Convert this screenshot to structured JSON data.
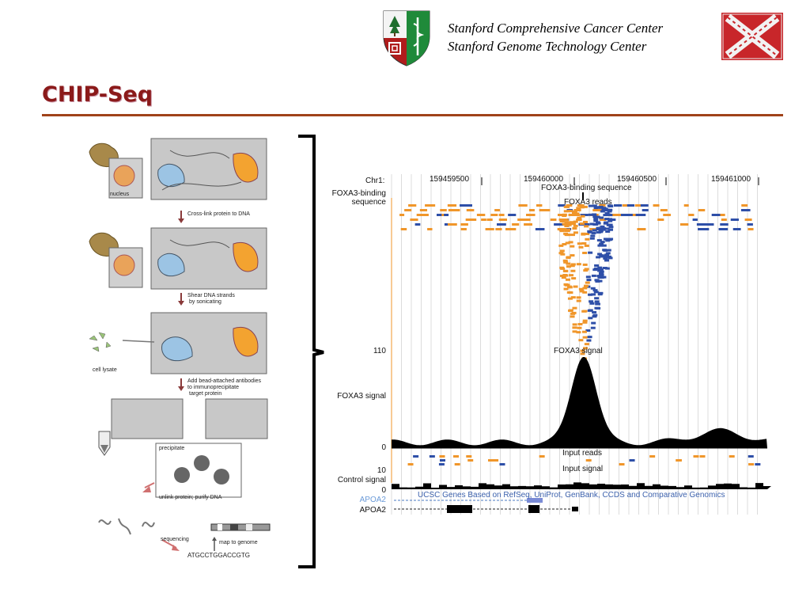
{
  "header": {
    "line1": "Stanford Comprehensive Cancer Center",
    "line2": "Stanford Genome Technology Center"
  },
  "title": "CHIP-Seq",
  "colors": {
    "title": "#8b1a1a",
    "rule": "#a0421a",
    "read_orange": "#f0962a",
    "read_blue": "#2e4fa8",
    "signal": "#000000",
    "gene_blue": "#4a78c0"
  },
  "workflow": {
    "nucleus": "nucleus",
    "step1": "Cross-link protein to DNA",
    "step2a": "Shear DNA strands",
    "step2b": "by sonicating",
    "cell_lysate": "cell lysate",
    "step3a": "Add bead-attached antibodies",
    "step3b": "to immunoprecipitate",
    "step3c": "target protein",
    "precipitate": "precipitate",
    "unlink": "unlink protein; purify DNA",
    "sequencing": "sequencing",
    "map": "map to genome",
    "sequence": "ATGCCTGGACCGTG"
  },
  "browser": {
    "chr": "Chr1:",
    "pos1": "159459500",
    "pos2": "159460000",
    "pos3": "159460500",
    "pos4": "159461000",
    "binding_label_a": "FOXA3-binding",
    "binding_label_b": "sequence",
    "binding_seq": "FOXA3-binding sequence",
    "reads": "FOXA3 reads",
    "y110": "110",
    "signal_label": "FOXA3 signal",
    "signal_track": "FOXA3 signal",
    "y0a": "0",
    "input_reads": "Input reads",
    "y10": "10",
    "input_signal": "Input signal",
    "control_signal": "Control signal",
    "y0b": "0",
    "ucsc": "UCSC Genes Based on RefSeq, UniProt, GenBank, CCDS and Comparative Genomics",
    "gene1": "APOA2",
    "gene2": "APOA2"
  }
}
